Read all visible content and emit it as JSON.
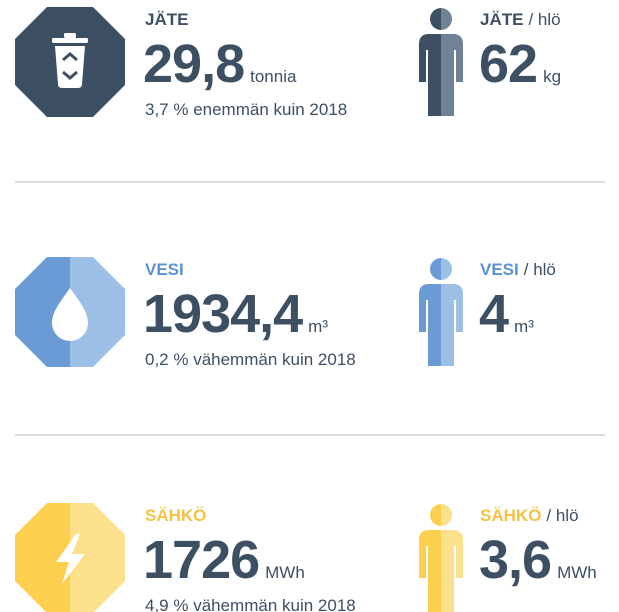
{
  "items": [
    {
      "label": "JÄTE",
      "value": "29,8",
      "unit": "tonnia",
      "note": "3,7 % enemmän kuin 2018",
      "per_label": "JÄTE",
      "per_suffix": "/ hlö",
      "per_value": "62",
      "per_unit": "kg"
    },
    {
      "label": "VESI",
      "value": "1934,4",
      "unit": "m³",
      "note": "0,2 % vähemmän kuin 2018",
      "per_label": "VESI",
      "per_suffix": "/ hlö",
      "per_value": "4",
      "per_unit": "m³"
    },
    {
      "label": "SÄHKÖ",
      "value": "1726",
      "unit": "MWh",
      "note": "4,9 % vähemmän kuin 2018",
      "per_label": "SÄHKÖ",
      "per_suffix": "/ hlö",
      "per_value": "3,6",
      "per_unit": "MWh"
    }
  ]
}
